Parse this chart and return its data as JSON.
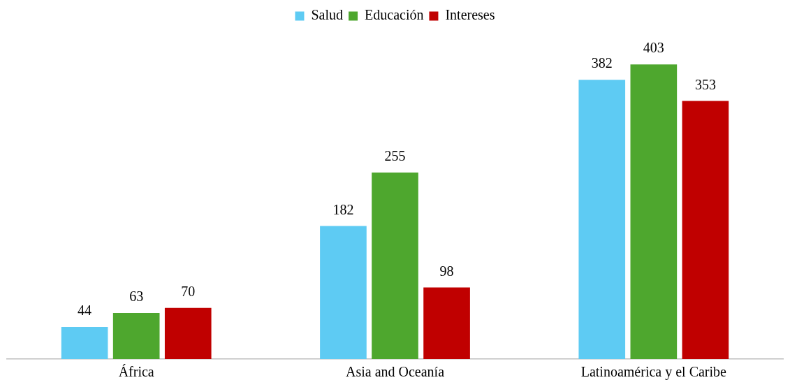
{
  "chart_data": {
    "type": "bar",
    "categories": [
      "África",
      "Asia and Oceanía",
      "Latinoamérica y el Caribe"
    ],
    "series": [
      {
        "name": "Salud",
        "color": "#5ecbf3",
        "values": [
          44,
          182,
          382
        ]
      },
      {
        "name": "Educación",
        "color": "#4ea72e",
        "values": [
          63,
          255,
          403
        ]
      },
      {
        "name": "Intereses",
        "color": "#c00000",
        "values": [
          70,
          98,
          353
        ]
      }
    ],
    "data_labels": true,
    "legend": "top",
    "grid": false
  }
}
